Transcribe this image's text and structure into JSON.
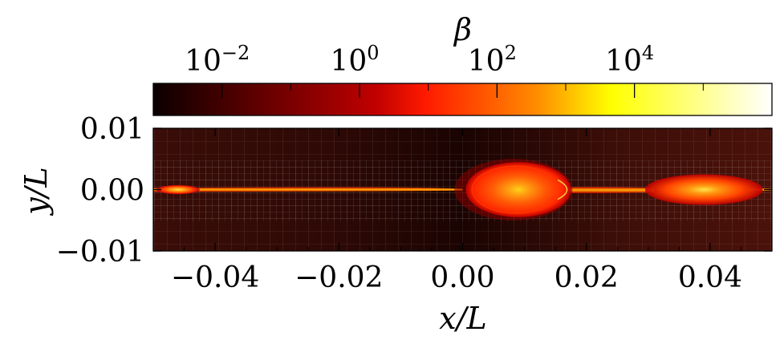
{
  "chart_data": {
    "type": "heatmap",
    "title": "",
    "colorbar": {
      "label": "β",
      "scale": "log",
      "range": [
        0.001,
        1000000
      ],
      "colormap": "hot",
      "placement": "top",
      "ticks": [
        {
          "value": 0.01,
          "base": "10",
          "exp": "−2"
        },
        {
          "value": 1,
          "base": "10",
          "exp": "0"
        },
        {
          "value": 100,
          "base": "10",
          "exp": "2"
        },
        {
          "value": 10000,
          "base": "10",
          "exp": "4"
        }
      ]
    },
    "xlabel": "x/L",
    "ylabel": "y/L",
    "xlim": [
      -0.05,
      0.05
    ],
    "ylim": [
      -0.01,
      0.01
    ],
    "xticks": [
      {
        "value": -0.04,
        "label": "−0.04"
      },
      {
        "value": -0.02,
        "label": "−0.02"
      },
      {
        "value": 0.0,
        "label": "0.00"
      },
      {
        "value": 0.02,
        "label": "0.02"
      },
      {
        "value": 0.04,
        "label": "0.04"
      }
    ],
    "yticks": [
      {
        "value": 0.01,
        "label": "0.01"
      },
      {
        "value": 0.0,
        "label": "0.00"
      },
      {
        "value": -0.01,
        "label": "−0.01"
      }
    ],
    "grid_overlay": "adaptive mesh",
    "features": [
      {
        "x": -0.046,
        "y": 0.0,
        "rx": 0.0035,
        "ry": 0.00075,
        "beta": 20
      },
      {
        "x": 0.009,
        "y": 0.0,
        "rx": 0.0085,
        "ry": 0.0045,
        "beta": 80
      },
      {
        "x": 0.039,
        "y": 0.0,
        "rx": 0.0095,
        "ry": 0.0025,
        "beta": 40
      }
    ]
  }
}
